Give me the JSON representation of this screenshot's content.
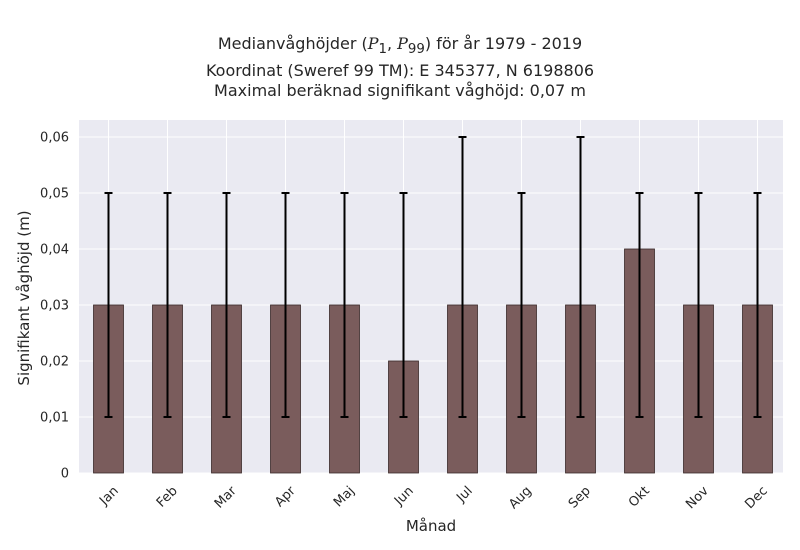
{
  "titles": {
    "line1_pre": "Medianvåghöjder (",
    "line1_math": "P",
    "line1_sub1": "1",
    "line1_sep": ", ",
    "line1_math2": "P",
    "line1_sub2": "99",
    "line1_post": ") för år 1979 - 2019",
    "line2": "Koordinat (Sweref 99 TM): E 345377, N 6198806",
    "line3": "Maximal beräknad signifikant våghöjd: 0,07 m"
  },
  "colors": {
    "plot_background": "#eaeaf2",
    "grid": "#ffffff",
    "bar_fill": "#7a5c5c",
    "bar_edge": "#3a2a2a",
    "errorbar": "#000000"
  },
  "chart_data": {
    "type": "bar",
    "title": "Medianvåghöjder (P1, P99) för år 1979 - 2019",
    "xlabel": "Månad",
    "ylabel": "Signifikant våghöjd (m)",
    "categories": [
      "Jan",
      "Feb",
      "Mar",
      "Apr",
      "Maj",
      "Jun",
      "Jul",
      "Aug",
      "Sep",
      "Okt",
      "Nov",
      "Dec"
    ],
    "values": [
      0.03,
      0.03,
      0.03,
      0.03,
      0.03,
      0.02,
      0.03,
      0.03,
      0.03,
      0.04,
      0.03,
      0.03
    ],
    "p1": [
      0.01,
      0.01,
      0.01,
      0.01,
      0.01,
      0.01,
      0.01,
      0.01,
      0.01,
      0.01,
      0.01,
      0.01
    ],
    "p99": [
      0.05,
      0.05,
      0.05,
      0.05,
      0.05,
      0.05,
      0.06,
      0.05,
      0.06,
      0.05,
      0.05,
      0.05
    ],
    "ylim": [
      0,
      0.063
    ],
    "yticks": [
      0,
      0.01,
      0.02,
      0.03,
      0.04,
      0.05,
      0.06
    ],
    "ytick_labels": [
      "0",
      "0,01",
      "0,02",
      "0,03",
      "0,04",
      "0,05",
      "0,06"
    ],
    "grid": true,
    "legend": "none"
  }
}
